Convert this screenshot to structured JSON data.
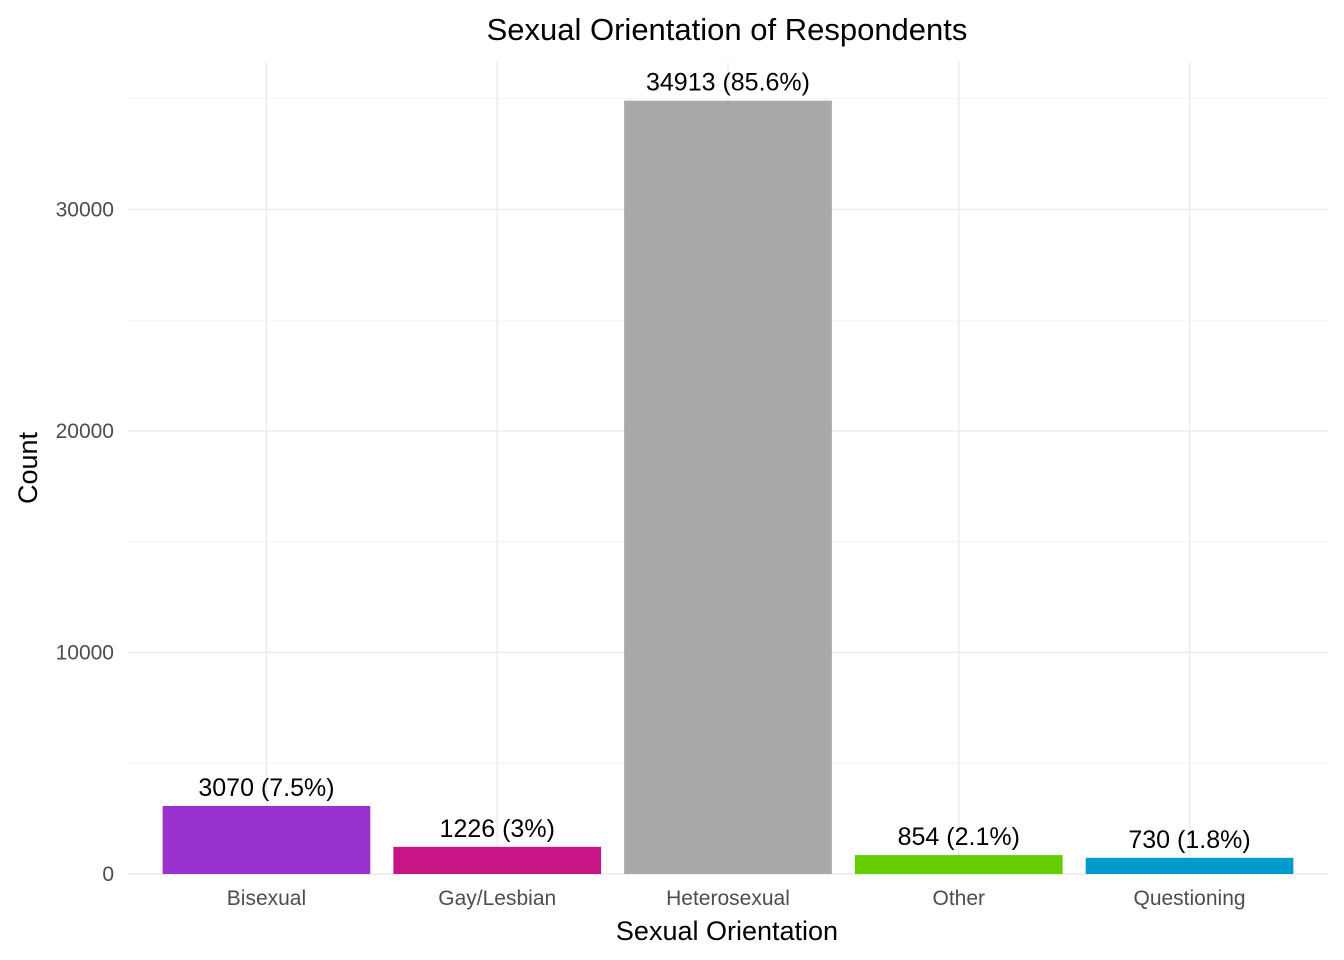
{
  "chart_data": {
    "type": "bar",
    "title": "Sexual Orientation of Respondents",
    "xlabel": "Sexual Orientation",
    "ylabel": "Count",
    "categories": [
      "Bisexual",
      "Gay/Lesbian",
      "Heterosexual",
      "Other",
      "Questioning"
    ],
    "values": [
      3070,
      1226,
      34913,
      854,
      730
    ],
    "data_labels": [
      "3070 (7.5%)",
      "1226 (3%)",
      "34913 (85.6%)",
      "854 (2.1%)",
      "730 (1.8%)"
    ],
    "colors": [
      "#9932CC",
      "#C71585",
      "#A9A9A9",
      "#66CD00",
      "#009ACD"
    ],
    "y_ticks": [
      0,
      10000,
      20000,
      30000
    ],
    "y_tick_labels": [
      "0",
      "10000",
      "20000",
      "30000"
    ],
    "ylim": [
      0,
      36658
    ],
    "grid": true,
    "legend": "none"
  }
}
